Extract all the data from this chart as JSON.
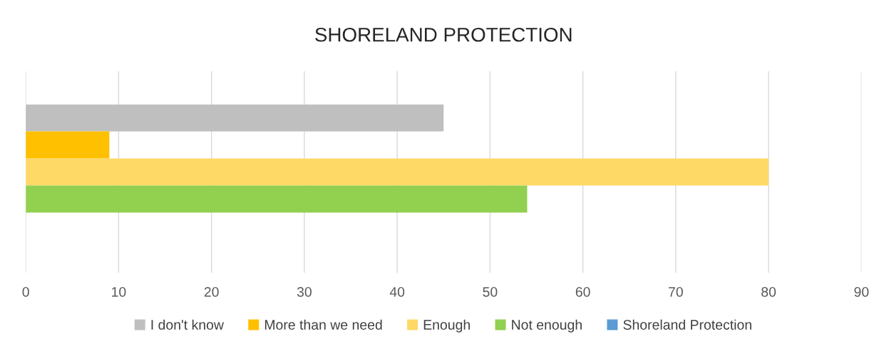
{
  "chart_data": {
    "type": "bar",
    "orientation": "horizontal",
    "title": "SHORELAND PROTECTION",
    "categories": [
      null
    ],
    "series": [
      {
        "name": "I don't know",
        "color": "#bfbfbf",
        "values": [
          45
        ]
      },
      {
        "name": "More than we need",
        "color": "#ffc000",
        "values": [
          9
        ]
      },
      {
        "name": "Enough",
        "color": "#ffd966",
        "values": [
          80
        ]
      },
      {
        "name": "Not enough",
        "color": "#92d050",
        "values": [
          54
        ]
      },
      {
        "name": "Shoreland Protection",
        "color": "#5b9bd5",
        "values": [
          0
        ]
      }
    ],
    "xlim": [
      0,
      90
    ],
    "xticks": [
      0,
      10,
      20,
      30,
      40,
      50,
      60,
      70,
      80,
      90
    ],
    "grid": "x",
    "legend": "bottom"
  }
}
